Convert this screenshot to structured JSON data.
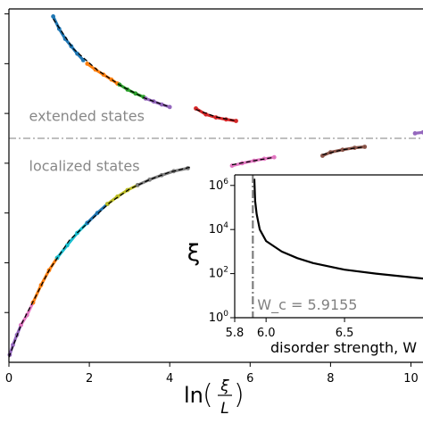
{
  "chart_data": [
    {
      "id": "main",
      "type": "scatter",
      "title": "",
      "xlabel": "ln(ξ/L)",
      "xlabel_parts": {
        "prefix": "ln",
        "numerator": "ξ",
        "denominator": "L"
      },
      "ylabel": "",
      "xlim": [
        0,
        10.3
      ],
      "ylim": [
        0,
        7.1
      ],
      "xticks": [
        0,
        2,
        4,
        6,
        8,
        10
      ],
      "xtick_labels": [
        "0",
        "2",
        "4",
        "6",
        "8",
        "10"
      ],
      "yticks": [
        1,
        2,
        3,
        4,
        5,
        6,
        7
      ],
      "legend": "none",
      "grid": false,
      "threshold_line": {
        "y": 4.5,
        "style": "dash-dot",
        "color": "#999999"
      },
      "annotations": [
        {
          "text": "extended states",
          "x": 0.5,
          "y": 4.85
        },
        {
          "text": "localized states",
          "x": 0.5,
          "y": 3.85
        }
      ],
      "colors": [
        "#1f77b4",
        "#ff7f0e",
        "#2ca02c",
        "#d62728",
        "#9467bd",
        "#8c564b",
        "#e377c2",
        "#7f7f7f",
        "#bcbd22",
        "#17becf"
      ],
      "series": [
        {
          "color": "#1f77b4",
          "x": [
            1.1,
            1.25,
            1.4,
            1.55,
            1.7,
            1.85
          ],
          "y": [
            6.95,
            6.7,
            6.5,
            6.35,
            6.2,
            6.07
          ]
        },
        {
          "color": "#ff7f0e",
          "x": [
            1.95,
            2.15,
            2.35,
            2.55,
            2.7
          ],
          "y": [
            6.0,
            5.88,
            5.78,
            5.68,
            5.6
          ]
        },
        {
          "color": "#2ca02c",
          "x": [
            2.75,
            2.95,
            3.15,
            3.35
          ],
          "y": [
            5.58,
            5.48,
            5.4,
            5.33
          ]
        },
        {
          "color": "#9467bd",
          "x": [
            3.4,
            3.6,
            3.8,
            4.0
          ],
          "y": [
            5.3,
            5.24,
            5.18,
            5.13
          ]
        },
        {
          "color": "#d62728",
          "x": [
            4.65,
            4.9,
            5.15,
            5.4,
            5.65
          ],
          "y": [
            5.1,
            4.98,
            4.92,
            4.88,
            4.85
          ]
        },
        {
          "color": "#e377c2",
          "x": [
            5.55,
            5.8,
            6.1,
            6.35,
            6.6
          ],
          "y": [
            3.95,
            4.0,
            4.05,
            4.09,
            4.12
          ]
        },
        {
          "color": "#8c564b",
          "x": [
            7.8,
            8.0,
            8.3,
            8.6,
            8.85
          ],
          "y": [
            4.15,
            4.22,
            4.27,
            4.31,
            4.33
          ]
        },
        {
          "color": "#9467bd",
          "x": [
            10.1,
            10.3
          ],
          "y": [
            4.6,
            4.62
          ]
        },
        {
          "color": "#9467bd",
          "x": [
            0.02,
            0.1,
            0.2,
            0.3
          ],
          "y": [
            0.15,
            0.35,
            0.55,
            0.75
          ]
        },
        {
          "color": "#e377c2",
          "x": [
            0.3,
            0.45,
            0.6
          ],
          "y": [
            0.75,
            0.95,
            1.2
          ]
        },
        {
          "color": "#ff7f0e",
          "x": [
            0.6,
            0.8,
            1.0,
            1.2
          ],
          "y": [
            1.2,
            1.55,
            1.85,
            2.1
          ]
        },
        {
          "color": "#17becf",
          "x": [
            1.2,
            1.45,
            1.7,
            1.95
          ],
          "y": [
            2.1,
            2.35,
            2.6,
            2.8
          ]
        },
        {
          "color": "#1f77b4",
          "x": [
            1.95,
            2.2,
            2.45
          ],
          "y": [
            2.8,
            3.0,
            3.18
          ]
        },
        {
          "color": "#bcbd22",
          "x": [
            2.45,
            2.7,
            2.95,
            3.2
          ],
          "y": [
            3.18,
            3.33,
            3.46,
            3.56
          ]
        },
        {
          "color": "#7f7f7f",
          "x": [
            3.2,
            3.5,
            3.8,
            4.1,
            4.45
          ],
          "y": [
            3.56,
            3.67,
            3.76,
            3.84,
            3.9
          ]
        }
      ],
      "fit_curves": [
        {
          "style": "dashed",
          "color": "#000000",
          "x": [
            1.1,
            1.6,
            2.2,
            2.8,
            3.4,
            4.0
          ],
          "y": [
            6.9,
            6.3,
            5.87,
            5.55,
            5.3,
            5.13
          ]
        },
        {
          "style": "dashed",
          "color": "#000000",
          "x": [
            4.65,
            5.15,
            5.65
          ],
          "y": [
            5.08,
            4.93,
            4.85
          ]
        },
        {
          "style": "dashed",
          "color": "#000000",
          "x": [
            5.55,
            6.1,
            6.6
          ],
          "y": [
            3.97,
            4.05,
            4.12
          ]
        },
        {
          "style": "dashed",
          "color": "#000000",
          "x": [
            7.8,
            8.3,
            8.85
          ],
          "y": [
            4.17,
            4.27,
            4.33
          ]
        },
        {
          "style": "dashed",
          "color": "#000000",
          "x": [
            0.0,
            0.3,
            0.6,
            1.0,
            1.5,
            2.0,
            2.5,
            3.0,
            3.5,
            4.0,
            4.5
          ],
          "y": [
            0.1,
            0.75,
            1.22,
            1.85,
            2.45,
            2.83,
            3.2,
            3.48,
            3.67,
            3.82,
            3.92
          ]
        }
      ]
    },
    {
      "id": "inset",
      "type": "line",
      "title": "",
      "xlabel": "disorder strength, W",
      "ylabel": "ξ",
      "xscale": "linear",
      "yscale": "log",
      "xlim": [
        5.8,
        7.0
      ],
      "ylim": [
        1,
        3000000
      ],
      "xticks": [
        5.8,
        6.0,
        6.5
      ],
      "xtick_labels": [
        "5.8",
        "6.0",
        "6.5"
      ],
      "yticks": [
        1,
        100,
        10000,
        1000000
      ],
      "ytick_labels": [
        "10^0",
        "10^2",
        "10^4",
        "10^6"
      ],
      "critical_line": {
        "x": 5.9155,
        "label": "W_c = 5.9155",
        "color": "#7f7f7f"
      },
      "legend": "none",
      "grid": false,
      "series": [
        {
          "color": "#000000",
          "x": [
            5.925,
            5.93,
            5.94,
            5.96,
            6.0,
            6.1,
            6.2,
            6.3,
            6.5,
            6.7,
            7.0
          ],
          "y": [
            2000000,
            200000,
            50000,
            10000,
            3000,
            1000,
            500,
            300,
            150,
            100,
            60
          ]
        }
      ]
    }
  ]
}
